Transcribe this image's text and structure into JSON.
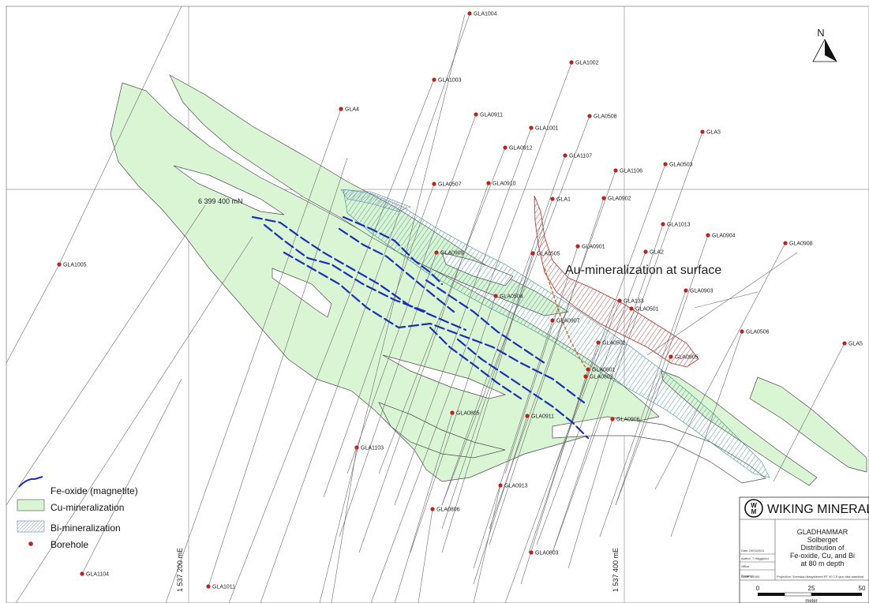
{
  "grid_labels": {
    "northing": "6 399 400 mN",
    "easting_left": "1 537 200 mE",
    "easting_right": "1 537 400 mE"
  },
  "north_arrow": {
    "label": "N"
  },
  "zone_label": "Au-mineralization at surface",
  "boreholes": [
    {
      "name": "GLA1004"
    },
    {
      "name": "GLA1002"
    },
    {
      "name": "GLA1003"
    },
    {
      "name": "GLA4"
    },
    {
      "name": "GLA0911"
    },
    {
      "name": "GLA1001"
    },
    {
      "name": "GLA0508"
    },
    {
      "name": "GLA3"
    },
    {
      "name": "GLA0912"
    },
    {
      "name": "GLA1107"
    },
    {
      "name": "GLA0503"
    },
    {
      "name": "GLA1106"
    },
    {
      "name": "GLA0507"
    },
    {
      "name": "GLA0910"
    },
    {
      "name": "GLA1"
    },
    {
      "name": "GLA0902"
    },
    {
      "name": "GLA1013"
    },
    {
      "name": "GLA0904"
    },
    {
      "name": "GLA0908"
    },
    {
      "name": "GLA1005"
    },
    {
      "name": "GLA0909"
    },
    {
      "name": "GLA0505"
    },
    {
      "name": "GLA0901"
    },
    {
      "name": "GLA2"
    },
    {
      "name": "GLA0903"
    },
    {
      "name": "GLA0504"
    },
    {
      "name": "GLA133"
    },
    {
      "name": "GLA0501"
    },
    {
      "name": "GLA0907"
    },
    {
      "name": "GLA0506"
    },
    {
      "name": "GLA0502"
    },
    {
      "name": "GLA5"
    },
    {
      "name": "GLA0905"
    },
    {
      "name": "GLA0801"
    },
    {
      "name": "GLA0802"
    },
    {
      "name": "GLA0805"
    },
    {
      "name": "GLA0911"
    },
    {
      "name": "GLA0906"
    },
    {
      "name": "GLA1103"
    },
    {
      "name": "GLA0913"
    },
    {
      "name": "GLA0806"
    },
    {
      "name": "GLA0803"
    },
    {
      "name": "GLA1104"
    },
    {
      "name": "GLA1011"
    }
  ],
  "legend": {
    "items": [
      {
        "label": "Fe-oxide (magnetite)"
      },
      {
        "label": "Cu-mineralization"
      },
      {
        "label": "Bi-mineralization"
      },
      {
        "label": "Borehole"
      }
    ]
  },
  "colors": {
    "fe_oxide": "#1a2fb8",
    "cu_fill": "#d9f5d4",
    "bi_hatch": "#3c8f92",
    "au_hatch": "#b0302a",
    "borehole": "#c0201a"
  },
  "title_block": {
    "company": "WIKING MINERAL AB",
    "project": "GLADHAMMAR",
    "title_lines": [
      "Solberget",
      "Distribution of",
      "Fe-oxide, Cu, and Bi",
      "at 80 m depth"
    ],
    "meta": [
      "Date 24/03/2011",
      "Author: T Hägglund",
      "Office",
      "Drawing"
    ],
    "scale": "Scale 1:1000",
    "projection": "Projection: Svenska rikssystemet RT 90 2,5 gon väst standard",
    "scale_ticks": [
      "0",
      "25",
      "50"
    ],
    "scale_unit": "meter"
  }
}
